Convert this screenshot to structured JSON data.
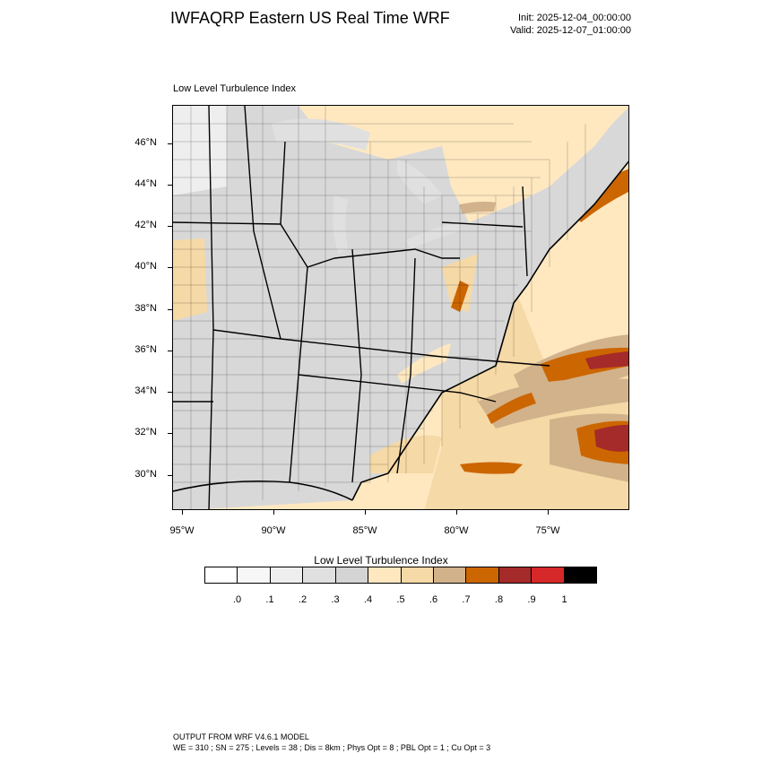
{
  "title": "IWFAQRP Eastern US Real Time WRF",
  "init": "Init: 2025-12-04_00:00:00",
  "valid": "Valid: 2025-12-07_01:00:00",
  "map": {
    "subtitle": "Low Level Turbulence Index",
    "lat_labels": [
      "46°N",
      "44°N",
      "42°N",
      "40°N",
      "38°N",
      "36°N",
      "34°N",
      "32°N",
      "30°N"
    ],
    "lon_labels": [
      "95°W",
      "90°W",
      "85°W",
      "80°W",
      "75°W"
    ]
  },
  "colorbar": {
    "title": "Low Level Turbulence Index",
    "labels": [
      ".0",
      ".1",
      ".2",
      ".3",
      ".4",
      ".5",
      ".6",
      ".7",
      ".8",
      ".9",
      "1"
    ],
    "colors": [
      "#ffffff",
      "#f7f7f7",
      "#eeeeee",
      "#e0e0e0",
      "#d4d4d4",
      "#ffe8c0",
      "#f5d9a6",
      "#d2b28a",
      "#cc6600",
      "#a52a2a",
      "#d62828",
      "#000000"
    ]
  },
  "footer": {
    "line1": "OUTPUT FROM WRF V4.6.1 MODEL",
    "line2": "WE = 310 ; SN = 275 ; Levels = 38 ; Dis = 8km ; Phys Opt = 8 ; PBL Opt = 1 ; Cu Opt = 3"
  }
}
